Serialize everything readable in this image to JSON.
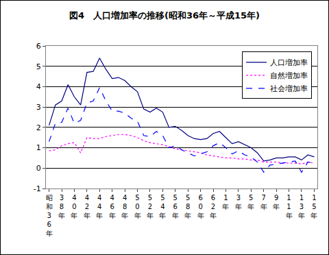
{
  "chart_data": {
    "type": "line",
    "title": "図4　人口増加率の推移(昭和36年～平成15年)",
    "categories": [
      "昭和36年",
      null,
      "38年",
      null,
      "40年",
      null,
      "42年",
      null,
      "44年",
      null,
      "46年",
      null,
      "48年",
      null,
      "50年",
      null,
      "52年",
      null,
      "54年",
      null,
      "56年",
      null,
      "58年",
      null,
      "60年",
      null,
      "62年",
      null,
      "1年",
      null,
      "3年",
      null,
      "5年",
      null,
      "7年",
      null,
      "9年",
      null,
      "11年",
      null,
      "13年",
      null,
      "15年"
    ],
    "series": [
      {
        "name": "人口増加率",
        "color": "#000080",
        "line_style": "solid",
        "values": [
          2.1,
          3.1,
          3.3,
          4.1,
          3.5,
          3.1,
          4.7,
          4.75,
          5.4,
          4.85,
          4.4,
          4.45,
          4.3,
          4.0,
          3.75,
          2.9,
          2.75,
          2.95,
          2.75,
          2.0,
          2.05,
          1.85,
          1.6,
          1.45,
          1.4,
          1.45,
          1.7,
          1.8,
          1.5,
          1.2,
          1.3,
          1.15,
          1.0,
          0.75,
          0.35,
          0.4,
          0.5,
          0.5,
          0.55,
          0.55,
          0.4,
          0.65,
          0.55
        ]
      },
      {
        "name": "自然増加率",
        "color": "#ff00ff",
        "line_style": "dotted",
        "values": [
          0.85,
          0.9,
          1.1,
          1.2,
          1.25,
          0.75,
          1.5,
          1.45,
          1.45,
          1.55,
          1.6,
          1.65,
          1.65,
          1.6,
          1.5,
          1.35,
          1.25,
          1.2,
          1.15,
          1.05,
          0.95,
          0.9,
          0.85,
          0.8,
          0.75,
          0.65,
          0.6,
          0.55,
          0.5,
          0.5,
          0.45,
          0.45,
          0.4,
          0.4,
          0.3,
          0.3,
          0.3,
          0.25,
          0.25,
          0.25,
          0.2,
          0.3,
          0.25
        ]
      },
      {
        "name": "社会増加率",
        "color": "#0000ff",
        "line_style": "dashed",
        "values": [
          1.3,
          2.2,
          2.25,
          2.95,
          2.2,
          2.35,
          3.2,
          3.3,
          3.95,
          3.3,
          2.8,
          2.8,
          2.7,
          2.45,
          2.3,
          1.6,
          1.55,
          1.8,
          1.6,
          1.0,
          1.1,
          0.9,
          0.75,
          0.6,
          0.7,
          0.8,
          1.1,
          1.25,
          1.0,
          0.7,
          0.85,
          0.65,
          0.55,
          0.3,
          -0.2,
          0.15,
          0.2,
          0.25,
          0.3,
          0.35,
          -0.2,
          0.3,
          0.25
        ]
      }
    ],
    "ylim": [
      -1,
      6
    ],
    "yticks": [
      -1,
      0,
      1,
      2,
      3,
      4,
      5,
      6
    ],
    "grid": true,
    "legend": "upper right"
  }
}
